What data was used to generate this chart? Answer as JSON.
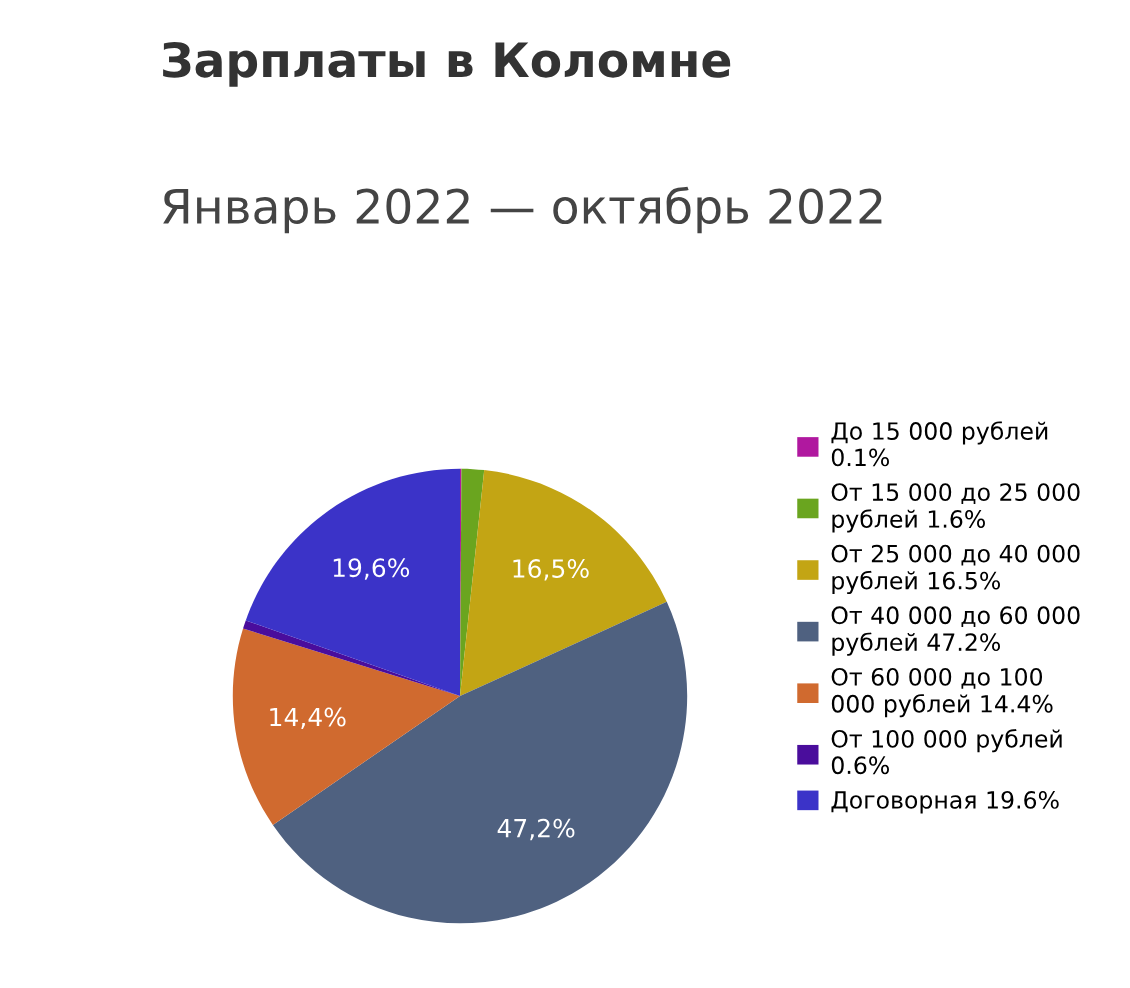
{
  "chart_data": {
    "type": "pie",
    "title": "Зарплаты в Коломне",
    "subtitle": "Январь 2022 — октябрь 2022",
    "categories": [
      "До 15 000 рублей 0.1%",
      "От 15 000 до 25 000 рублей 1.6%",
      "От 25 000 до 40 000 рублей 16.5%",
      "От 40 000 до 60 000 рублей 47.2%",
      "От 60 000 до 100 000 рублей 14.4%",
      "От 100 000 рублей 0.6%",
      "Договорная 19.6%"
    ],
    "values": [
      0.1,
      1.6,
      16.5,
      47.2,
      14.4,
      0.6,
      19.6
    ],
    "colors": [
      "#b0189f",
      "#6aa51f",
      "#c3a514",
      "#4f6180",
      "#d06a2f",
      "#4a0d9c",
      "#3b33c8"
    ],
    "value_labels": [
      null,
      null,
      "16,5%",
      "47,2%",
      "14,4%",
      null,
      "19,6%"
    ],
    "legend": "right"
  }
}
